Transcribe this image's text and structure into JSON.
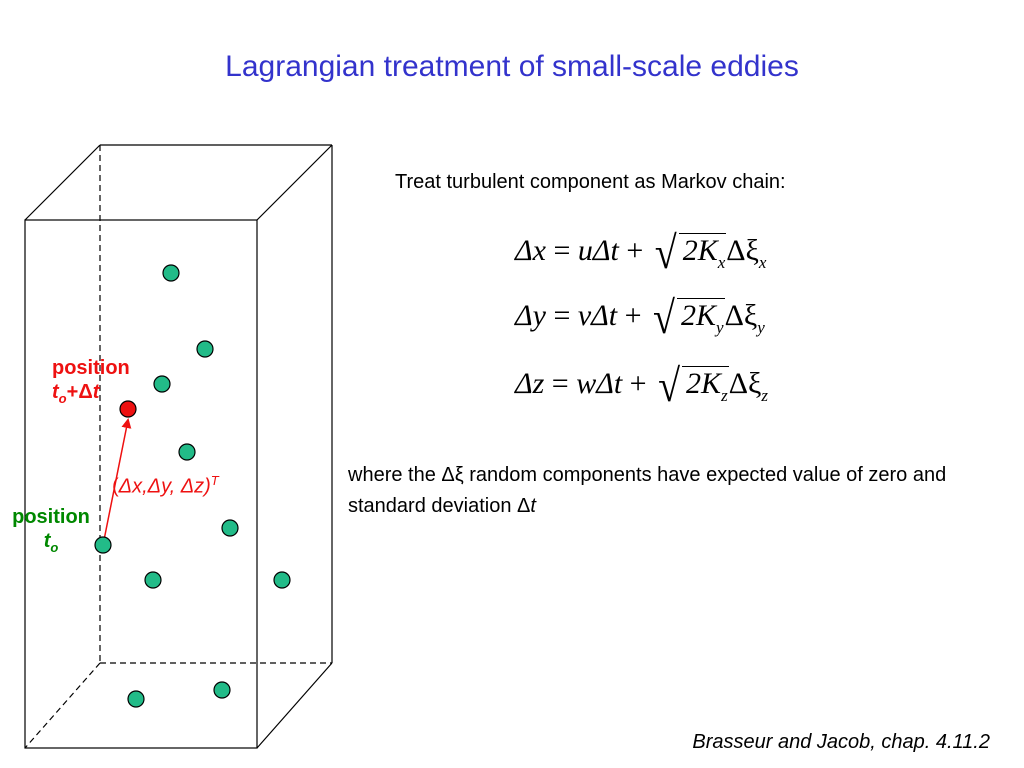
{
  "title": "Lagrangian treatment of small-scale eddies",
  "diagram": {
    "label_final_word": "position",
    "label_final_time_var": "t",
    "label_final_time_sub": "o",
    "label_final_time_op": "+",
    "label_final_delta": "Δ",
    "label_final_time_var2": "t",
    "label_initial_word": "position",
    "label_initial_time_var": "t",
    "label_initial_time_sub": "o",
    "displacement_open": "(",
    "displacement_text": "Δx,Δy, Δz)",
    "displacement_sup": "T",
    "colors": {
      "particle": "#22bb88",
      "final_particle": "#ee1111",
      "arrow": "#ee1111",
      "final_label": "#ee1111",
      "initial_label": "#008800"
    }
  },
  "intro": "Treat turbulent component as Markov chain:",
  "equations": [
    {
      "lhs": "Δx",
      "eq": " = ",
      "term": "uΔt",
      "plus": " + ",
      "root": "2K",
      "root_sub": "x",
      "noise": "Δξ",
      "noise_sub": "x"
    },
    {
      "lhs": "Δy",
      "eq": " = ",
      "term": "vΔt",
      "plus": " + ",
      "root": "2K",
      "root_sub": "y",
      "noise": "Δξ",
      "noise_sub": "y"
    },
    {
      "lhs": "Δz",
      "eq": " = ",
      "term": "wΔt",
      "plus": " + ",
      "root": "2K",
      "root_sub": "z",
      "noise": "Δξ",
      "noise_sub": "z"
    }
  ],
  "note_part1": "where the Δξ random components have expected value of zero and standard deviation Δ",
  "note_part2": "t",
  "citation": "Brasseur and Jacob, chap. 4.11.2"
}
